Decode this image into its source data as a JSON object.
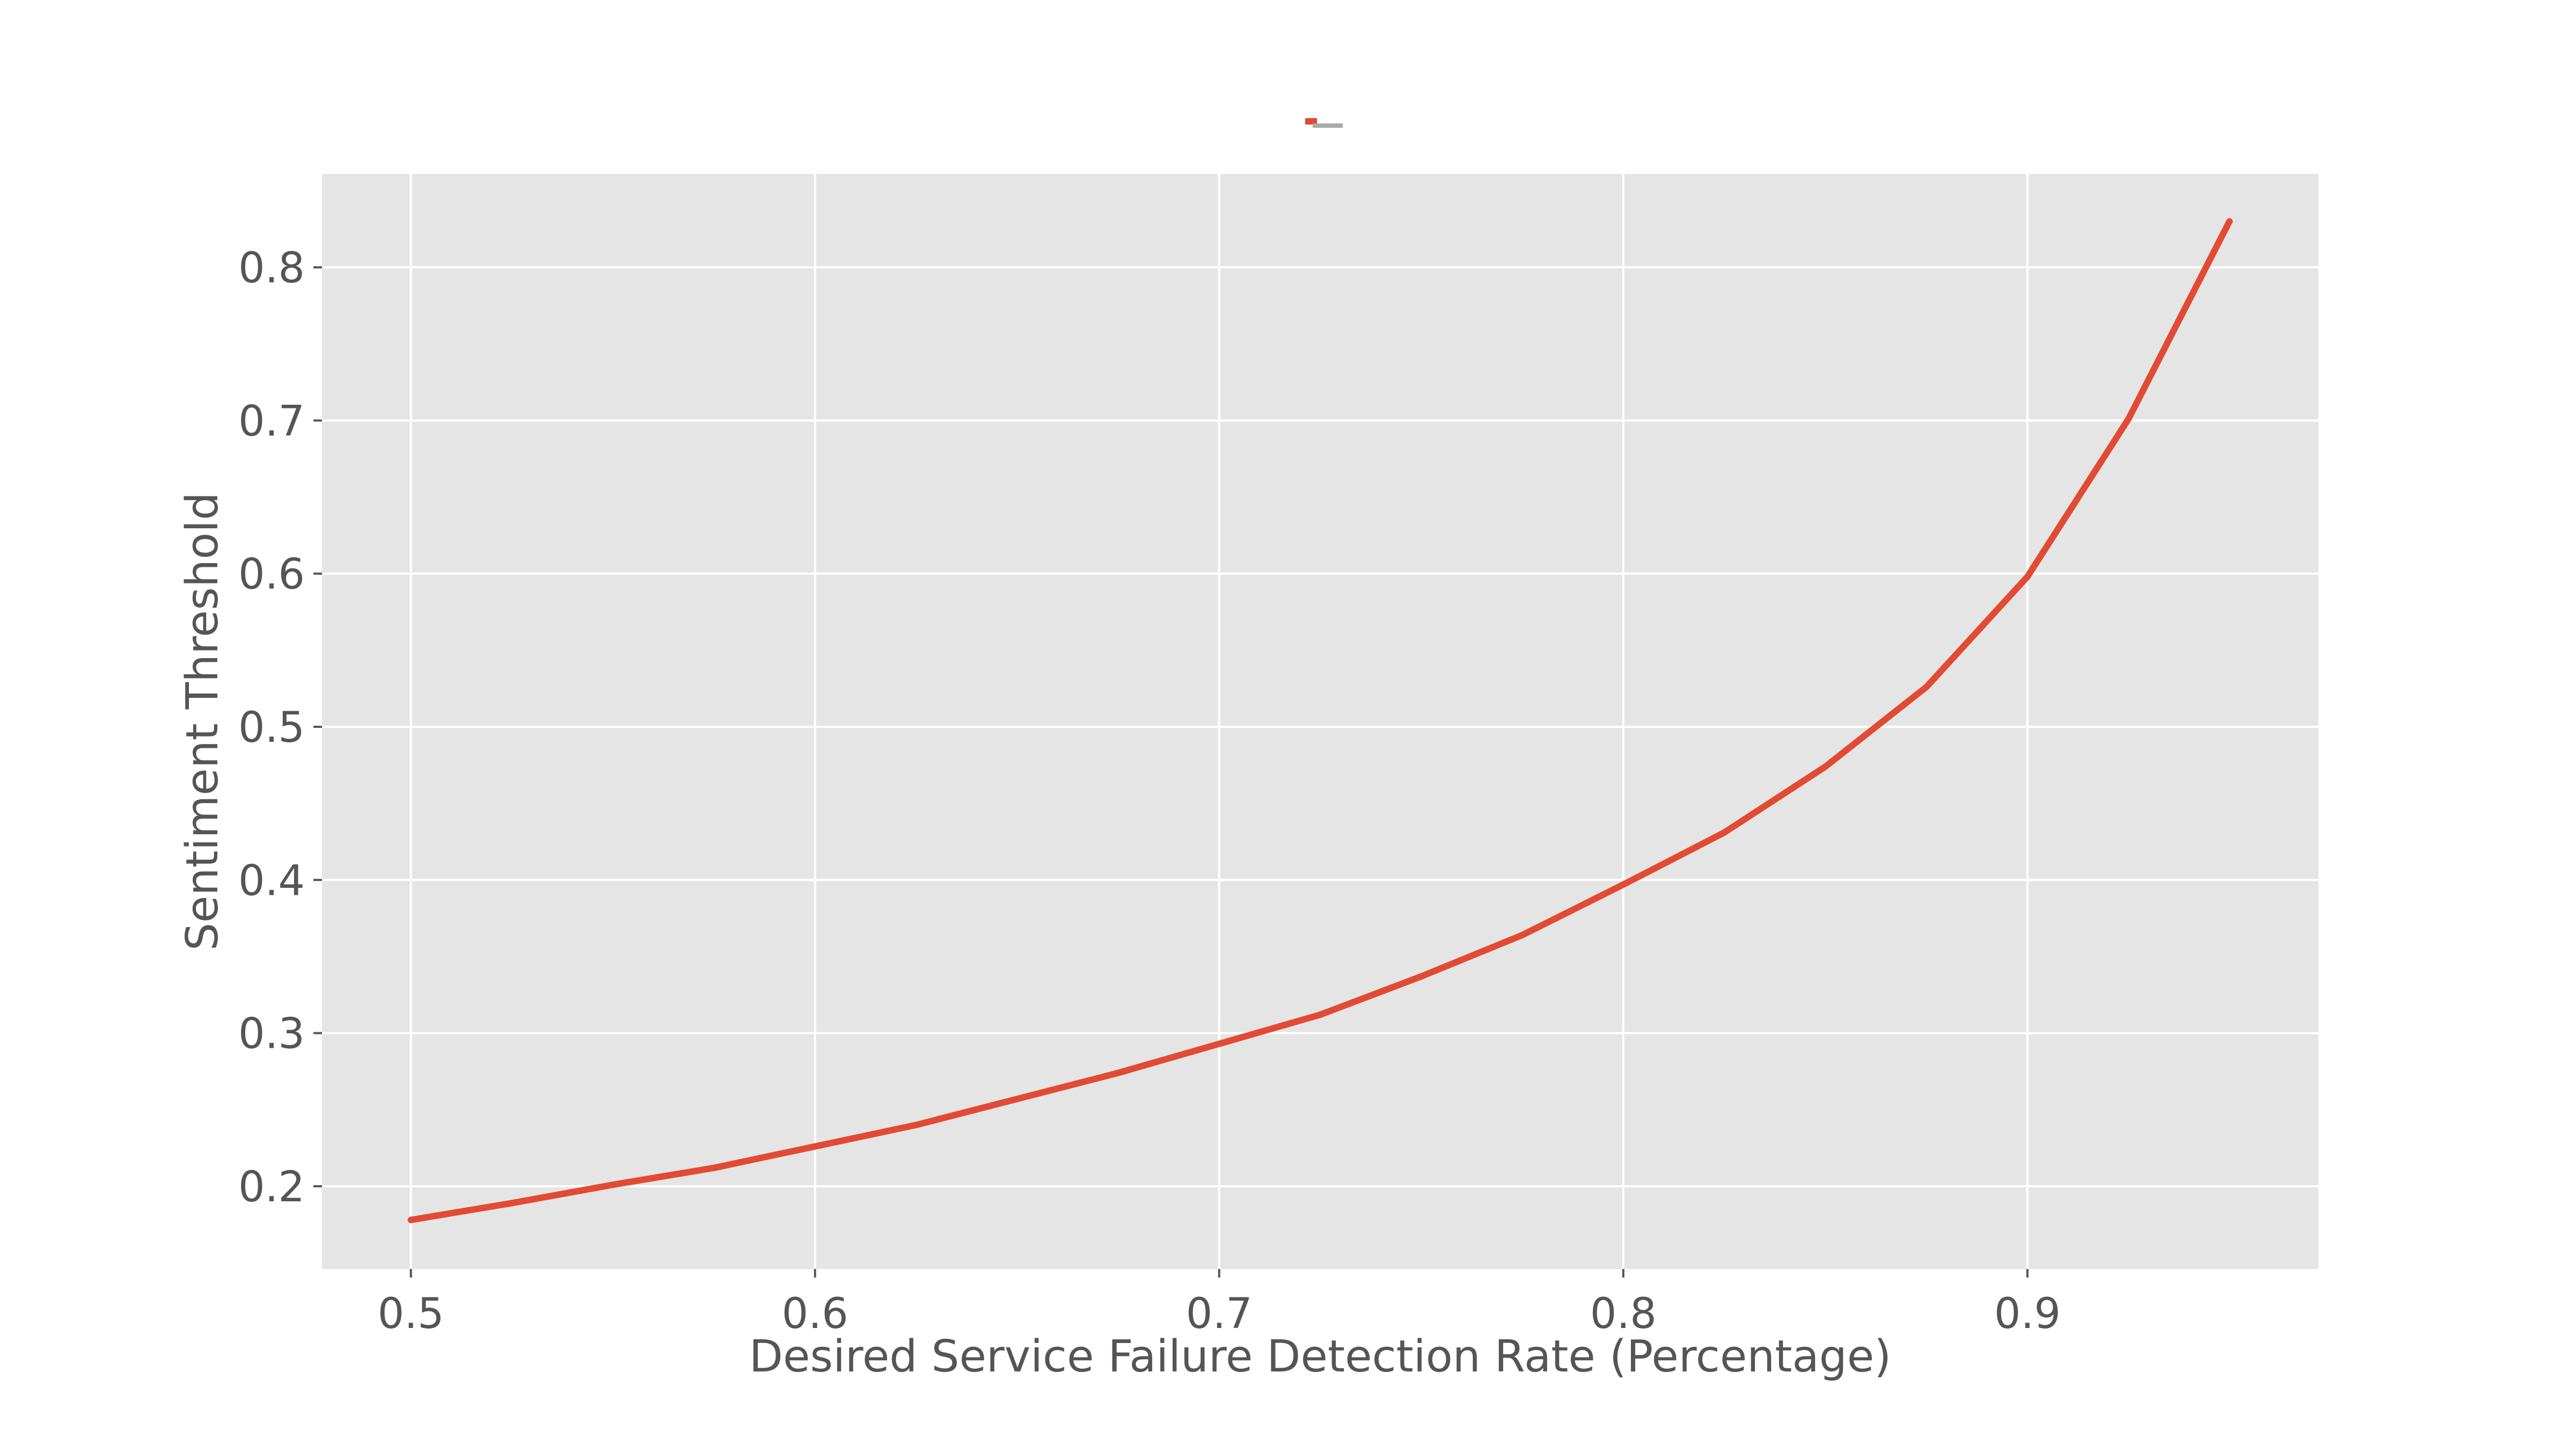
{
  "chart_data": {
    "type": "line",
    "title": "",
    "xlabel": "Desired Service Failure Detection Rate (Percentage)",
    "ylabel": "Sentiment Threshold",
    "xlim": [
      0.478,
      0.972
    ],
    "ylim": [
      0.146,
      0.861
    ],
    "xticks": [
      0.5,
      0.6,
      0.7,
      0.8,
      0.9
    ],
    "xtick_labels": [
      "0.5",
      "0.6",
      "0.7",
      "0.8",
      "0.9"
    ],
    "yticks": [
      0.2,
      0.3,
      0.4,
      0.5,
      0.6,
      0.7,
      0.8
    ],
    "ytick_labels": [
      "0.2",
      "0.3",
      "0.4",
      "0.5",
      "0.6",
      "0.7",
      "0.8"
    ],
    "grid": true,
    "legend": {
      "placement": "top-center",
      "entries": [
        ""
      ]
    },
    "colors": {
      "series": "#e24a33",
      "plot_bg": "#e5e5e5",
      "grid": "#ffffff",
      "text": "#555555",
      "legend_gray": "#a9a9a9"
    },
    "series": [
      {
        "x": [
          0.5,
          0.525,
          0.55,
          0.575,
          0.6,
          0.625,
          0.65,
          0.675,
          0.7,
          0.725,
          0.75,
          0.775,
          0.8,
          0.825,
          0.85,
          0.875,
          0.9,
          0.925,
          0.95
        ],
        "values": [
          0.178,
          0.189,
          0.201,
          0.212,
          0.226,
          0.24,
          0.257,
          0.274,
          0.293,
          0.312,
          0.337,
          0.364,
          0.397,
          0.431,
          0.474,
          0.526,
          0.598,
          0.701,
          0.83
        ]
      }
    ]
  }
}
